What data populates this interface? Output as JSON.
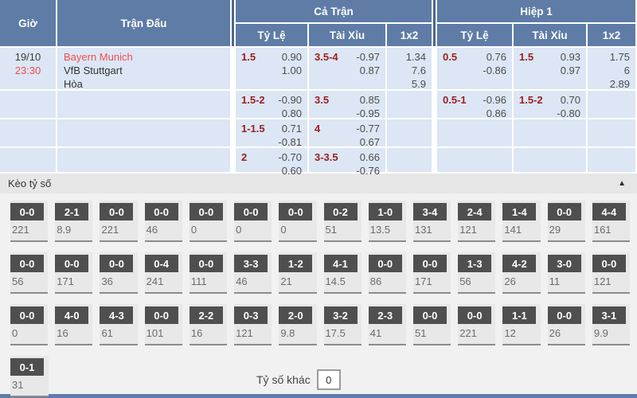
{
  "odds_table": {
    "headers": {
      "time": "Giờ",
      "match": "Trận Đấu",
      "full_time": "Cả Trận",
      "first_half": "Hiệp 1",
      "handicap": "Tỷ Lệ",
      "over_under": "Tài Xỉu",
      "one_x_two": "1x2"
    },
    "match_rows": [
      {
        "time": [
          "19/10",
          "23:30"
        ],
        "teams": [
          "Bayern Munich",
          "VfB Stuttgart",
          "Hòa"
        ],
        "full_time": {
          "handicap": {
            "line": "1.5",
            "odds": [
              "0.90",
              "1.00"
            ]
          },
          "over_under": {
            "line": "3.5-4",
            "odds": [
              "-0.97",
              "0.87"
            ]
          },
          "one_x_two": [
            "1.34",
            "7.6",
            "5.9"
          ]
        },
        "first_half": {
          "handicap": {
            "line": "0.5",
            "odds": [
              "0.76",
              "-0.86"
            ]
          },
          "over_under": {
            "line": "1.5",
            "odds": [
              "0.93",
              "0.97"
            ]
          },
          "one_x_two": [
            "1.75",
            "6",
            "2.89"
          ]
        }
      },
      {
        "time": [],
        "teams": [],
        "full_time": {
          "handicap": {
            "line": "1.5-2",
            "odds": [
              "-0.90",
              "0.80"
            ]
          },
          "over_under": {
            "line": "3.5",
            "odds": [
              "0.85",
              "-0.95"
            ]
          },
          "one_x_two": []
        },
        "first_half": {
          "handicap": {
            "line": "0.5-1",
            "odds": [
              "-0.96",
              "0.86"
            ]
          },
          "over_under": {
            "line": "1.5-2",
            "odds": [
              "0.70",
              "-0.80"
            ]
          },
          "one_x_two": []
        }
      },
      {
        "time": [],
        "teams": [],
        "full_time": {
          "handicap": {
            "line": "1-1.5",
            "odds": [
              "0.71",
              "-0.81"
            ]
          },
          "over_under": {
            "line": "4",
            "odds": [
              "-0.77",
              "0.67"
            ]
          },
          "one_x_two": []
        },
        "first_half": {
          "handicap": null,
          "over_under": null,
          "one_x_two": []
        }
      },
      {
        "time": [],
        "teams": [],
        "full_time": {
          "handicap": {
            "line": "2",
            "odds": [
              "-0.70",
              "0.60"
            ]
          },
          "over_under": {
            "line": "3-3.5",
            "odds": [
              "0.66",
              "-0.76"
            ]
          },
          "one_x_two": []
        },
        "first_half": {
          "handicap": null,
          "over_under": null,
          "one_x_two": []
        }
      }
    ]
  },
  "score_section": {
    "title": "Kèo tỷ số",
    "collapse_icon": "▲",
    "rows": [
      [
        {
          "score": "0-0",
          "odds": "221"
        },
        {
          "score": "2-1",
          "odds": "8.9"
        },
        {
          "score": "0-0",
          "odds": "221"
        },
        {
          "score": "0-0",
          "odds": "46"
        },
        {
          "score": "0-0",
          "odds": "0"
        },
        {
          "score": "0-0",
          "odds": "0"
        },
        {
          "score": "0-0",
          "odds": "0"
        },
        {
          "score": "0-2",
          "odds": "51"
        },
        {
          "score": "1-0",
          "odds": "13.5"
        },
        {
          "score": "3-4",
          "odds": "131"
        },
        {
          "score": "2-4",
          "odds": "121"
        },
        {
          "score": "1-4",
          "odds": "141"
        },
        {
          "score": "0-0",
          "odds": "29"
        },
        {
          "score": "4-4",
          "odds": "161"
        }
      ],
      [
        {
          "score": "0-0",
          "odds": "56"
        },
        {
          "score": "0-0",
          "odds": "171"
        },
        {
          "score": "0-0",
          "odds": "36"
        },
        {
          "score": "0-4",
          "odds": "241"
        },
        {
          "score": "0-0",
          "odds": "111"
        },
        {
          "score": "3-3",
          "odds": "46"
        },
        {
          "score": "1-2",
          "odds": "21"
        },
        {
          "score": "4-1",
          "odds": "14.5"
        },
        {
          "score": "0-0",
          "odds": "86"
        },
        {
          "score": "0-0",
          "odds": "171"
        },
        {
          "score": "1-3",
          "odds": "56"
        },
        {
          "score": "4-2",
          "odds": "26"
        },
        {
          "score": "3-0",
          "odds": "11"
        },
        {
          "score": "0-0",
          "odds": "121"
        }
      ],
      [
        {
          "score": "0-0",
          "odds": "0"
        },
        {
          "score": "4-0",
          "odds": "16"
        },
        {
          "score": "4-3",
          "odds": "61"
        },
        {
          "score": "0-0",
          "odds": "101"
        },
        {
          "score": "2-2",
          "odds": "16"
        },
        {
          "score": "0-3",
          "odds": "121"
        },
        {
          "score": "2-0",
          "odds": "9.8"
        },
        {
          "score": "3-2",
          "odds": "17.5"
        },
        {
          "score": "2-3",
          "odds": "41"
        },
        {
          "score": "0-0",
          "odds": "51"
        },
        {
          "score": "0-0",
          "odds": "221"
        },
        {
          "score": "1-1",
          "odds": "12"
        },
        {
          "score": "0-0",
          "odds": "26"
        },
        {
          "score": "3-1",
          "odds": "9.9"
        }
      ],
      [
        {
          "score": "0-1",
          "odds": "31"
        }
      ]
    ],
    "other_score_label": "Tỷ số khác",
    "other_score_value": "0"
  },
  "colors": {
    "header_blue": "#5e7ca6",
    "header_divider_blue": "#4e688f",
    "row_light_blue": "#dce6f4",
    "accent_red": "#f04c50",
    "handicap_maroon": "#9c2020",
    "score_box_gray": "#4f4f4f",
    "section_gray": "#f1f1f1"
  }
}
